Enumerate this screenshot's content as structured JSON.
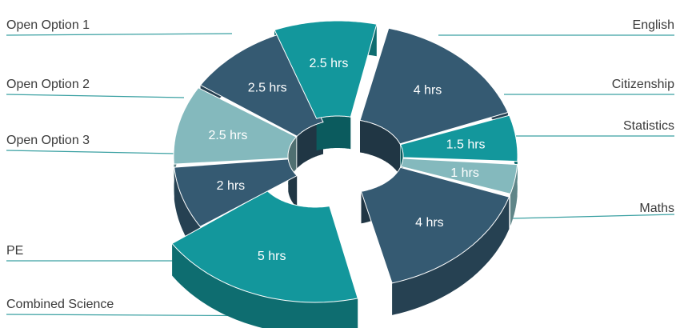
{
  "chart_data": {
    "type": "pie",
    "variant": "3d-exploded-doughnut",
    "categories": [
      "English",
      "Citizenship",
      "Statistics",
      "Maths",
      "Combined Science",
      "PE",
      "Open Option 3",
      "Open Option 2",
      "Open Option 1"
    ],
    "values": [
      4,
      1.5,
      1,
      4,
      5,
      2,
      2.5,
      2.5,
      2.5
    ],
    "value_labels": [
      "4 hrs",
      "1.5 hrs",
      "1 hrs",
      "4 hrs",
      "5 hrs",
      "2 hrs",
      "2.5 hrs",
      "2.5 hrs",
      "2.5 hrs"
    ],
    "colors": [
      "#355a72",
      "#13979c",
      "#84b9bd",
      "#355a72",
      "#13979c",
      "#355a72",
      "#84b9bd",
      "#355a72",
      "#13979c"
    ],
    "legend": "callout-lines",
    "title": ""
  }
}
